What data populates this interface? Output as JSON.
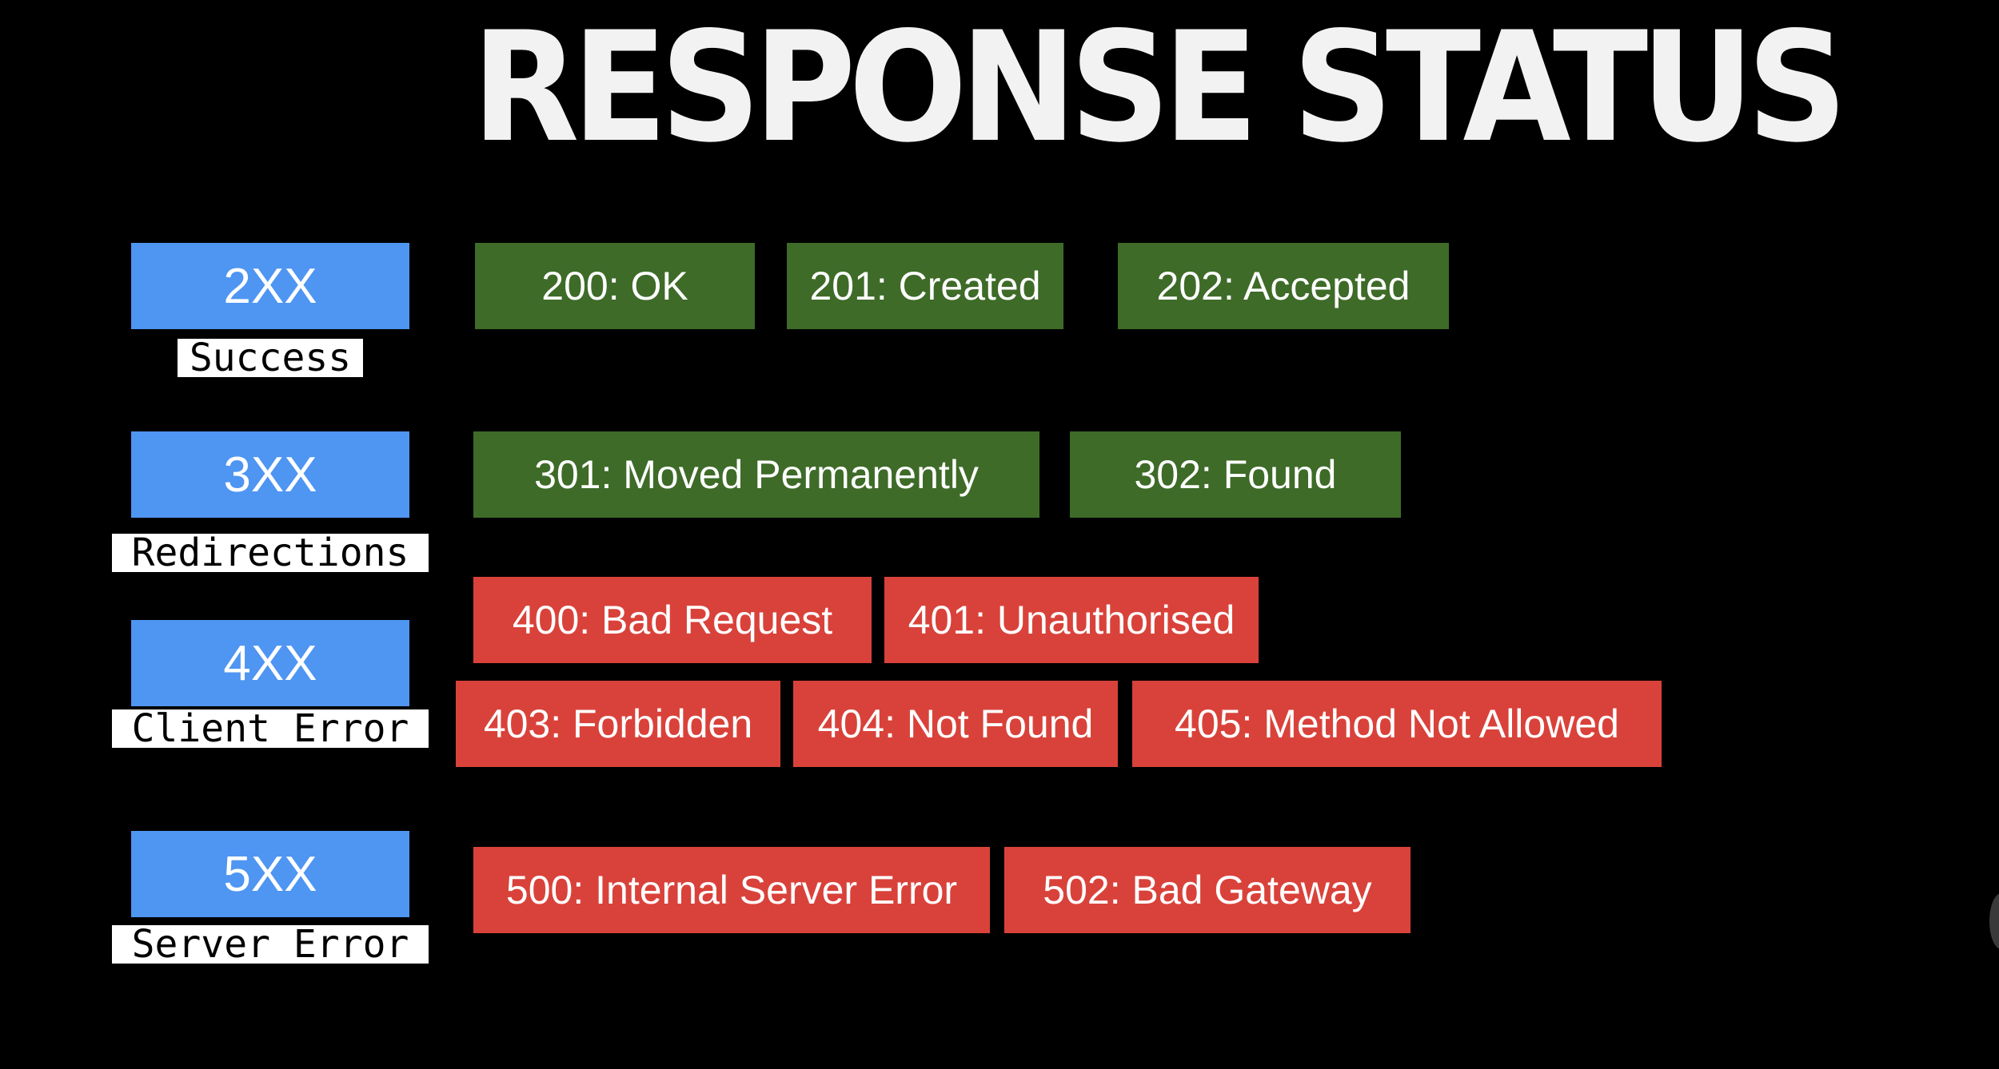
{
  "title": "RESPONSE STATUS",
  "categories": {
    "c2xx": {
      "code": "2XX",
      "label": "Success"
    },
    "c3xx": {
      "code": "3XX",
      "label": "Redirections"
    },
    "c4xx": {
      "code": "4XX",
      "label": "Client Error"
    },
    "c5xx": {
      "code": "5XX",
      "label": "Server Error"
    }
  },
  "codes": {
    "s200": "200: OK",
    "s201": "201: Created",
    "s202": "202: Accepted",
    "s301": "301: Moved Permanently",
    "s302": "302: Found",
    "s400": "400: Bad Request",
    "s401": "401: Unauthorised",
    "s403": "403: Forbidden",
    "s404": "404: Not Found",
    "s405": "405: Method Not Allowed",
    "s500": "500: Internal Server Error",
    "s502": "502: Bad Gateway"
  },
  "colors": {
    "category": "#4f95f2",
    "success": "#3e6b28",
    "error": "#d9423a",
    "background": "#000000"
  }
}
